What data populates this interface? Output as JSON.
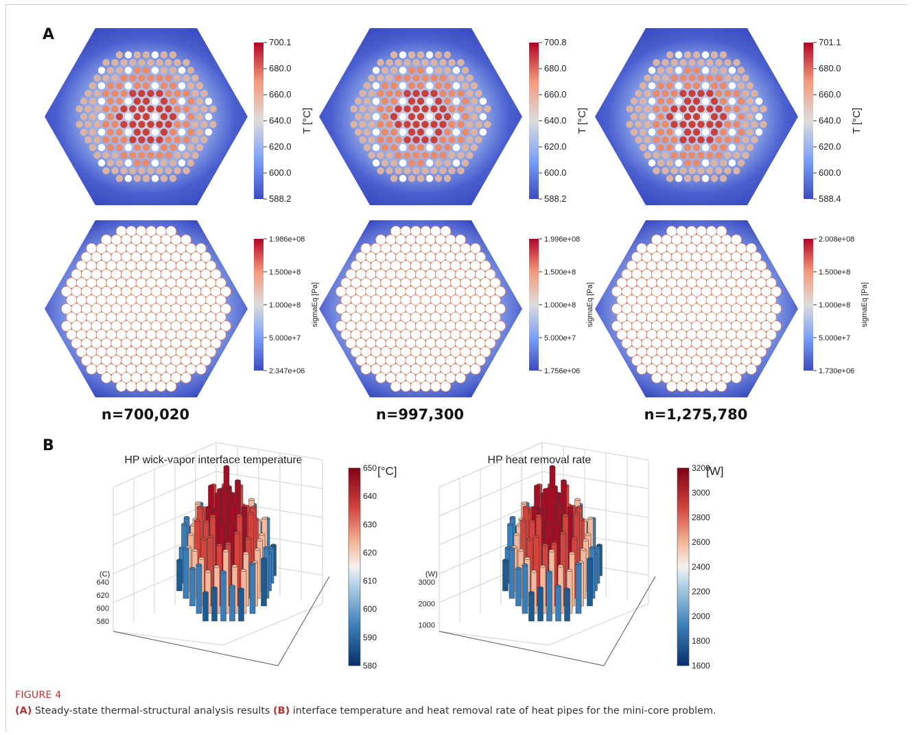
{
  "panelA": {
    "letter": "A",
    "cases": [
      {
        "mesh_label": "n=700,020",
        "temp_bar": {
          "title": "T [°C]",
          "ticks": [
            "700.1",
            "680.0",
            "660.0",
            "640.0",
            "620.0",
            "600.0",
            "588.2"
          ]
        },
        "stress_bar": {
          "title": "sigmaEq [Pa]",
          "ticks": [
            "1.986e+08",
            "1.500e+8",
            "1.000e+8",
            "5.000e+7",
            "2.347e+06"
          ]
        }
      },
      {
        "mesh_label": "n=997,300",
        "temp_bar": {
          "title": "T [°C]",
          "ticks": [
            "700.8",
            "680.0",
            "660.0",
            "640.0",
            "620.0",
            "600.0",
            "588.2"
          ]
        },
        "stress_bar": {
          "title": "sigmaEq [Pa]",
          "ticks": [
            "1.996e+08",
            "1.500e+8",
            "1.000e+8",
            "5.000e+7",
            "1.756e+06"
          ]
        }
      },
      {
        "mesh_label": "n=1,275,780",
        "temp_bar": {
          "title": "T [°C]",
          "ticks": [
            "701.1",
            "680.0",
            "660.0",
            "640.0",
            "620.0",
            "600.0",
            "588.4"
          ]
        },
        "stress_bar": {
          "title": "sigmaEq [Pa]",
          "ticks": [
            "2.008e+08",
            "1.500e+8",
            "1.000e+8",
            "5.000e+7",
            "1.730e+06"
          ]
        }
      }
    ]
  },
  "panelB": {
    "letter": "B",
    "charts": [
      {
        "title": "HP wick-vapor interface temperature",
        "z_unit": "(C)",
        "z_ticks": [
          "640",
          "620",
          "600",
          "580"
        ],
        "colorbar_unit": "[°C]",
        "colorbar_ticks": [
          "650",
          "640",
          "630",
          "620",
          "610",
          "600",
          "590",
          "580"
        ]
      },
      {
        "title": "HP heat removal rate",
        "z_unit": "(W)",
        "z_ticks": [
          "3000",
          "2000",
          "1000"
        ],
        "colorbar_unit": "[W]",
        "colorbar_ticks": [
          "3200",
          "3000",
          "2800",
          "2600",
          "2400",
          "2200",
          "2000",
          "1800",
          "1600"
        ]
      }
    ]
  },
  "caption": {
    "figure_label": "FIGURE 4",
    "a_tag": "(A)",
    "a_text": " Steady-state thermal-structural analysis results ",
    "b_tag": "(B)",
    "b_text": " interface temperature and heat removal rate of heat pipes for the mini-core problem."
  },
  "colors": {
    "hex_blue": "#3b4cc0",
    "hot": "#b40426",
    "cool": "#08306b",
    "caption_red": "#b7322f"
  }
}
